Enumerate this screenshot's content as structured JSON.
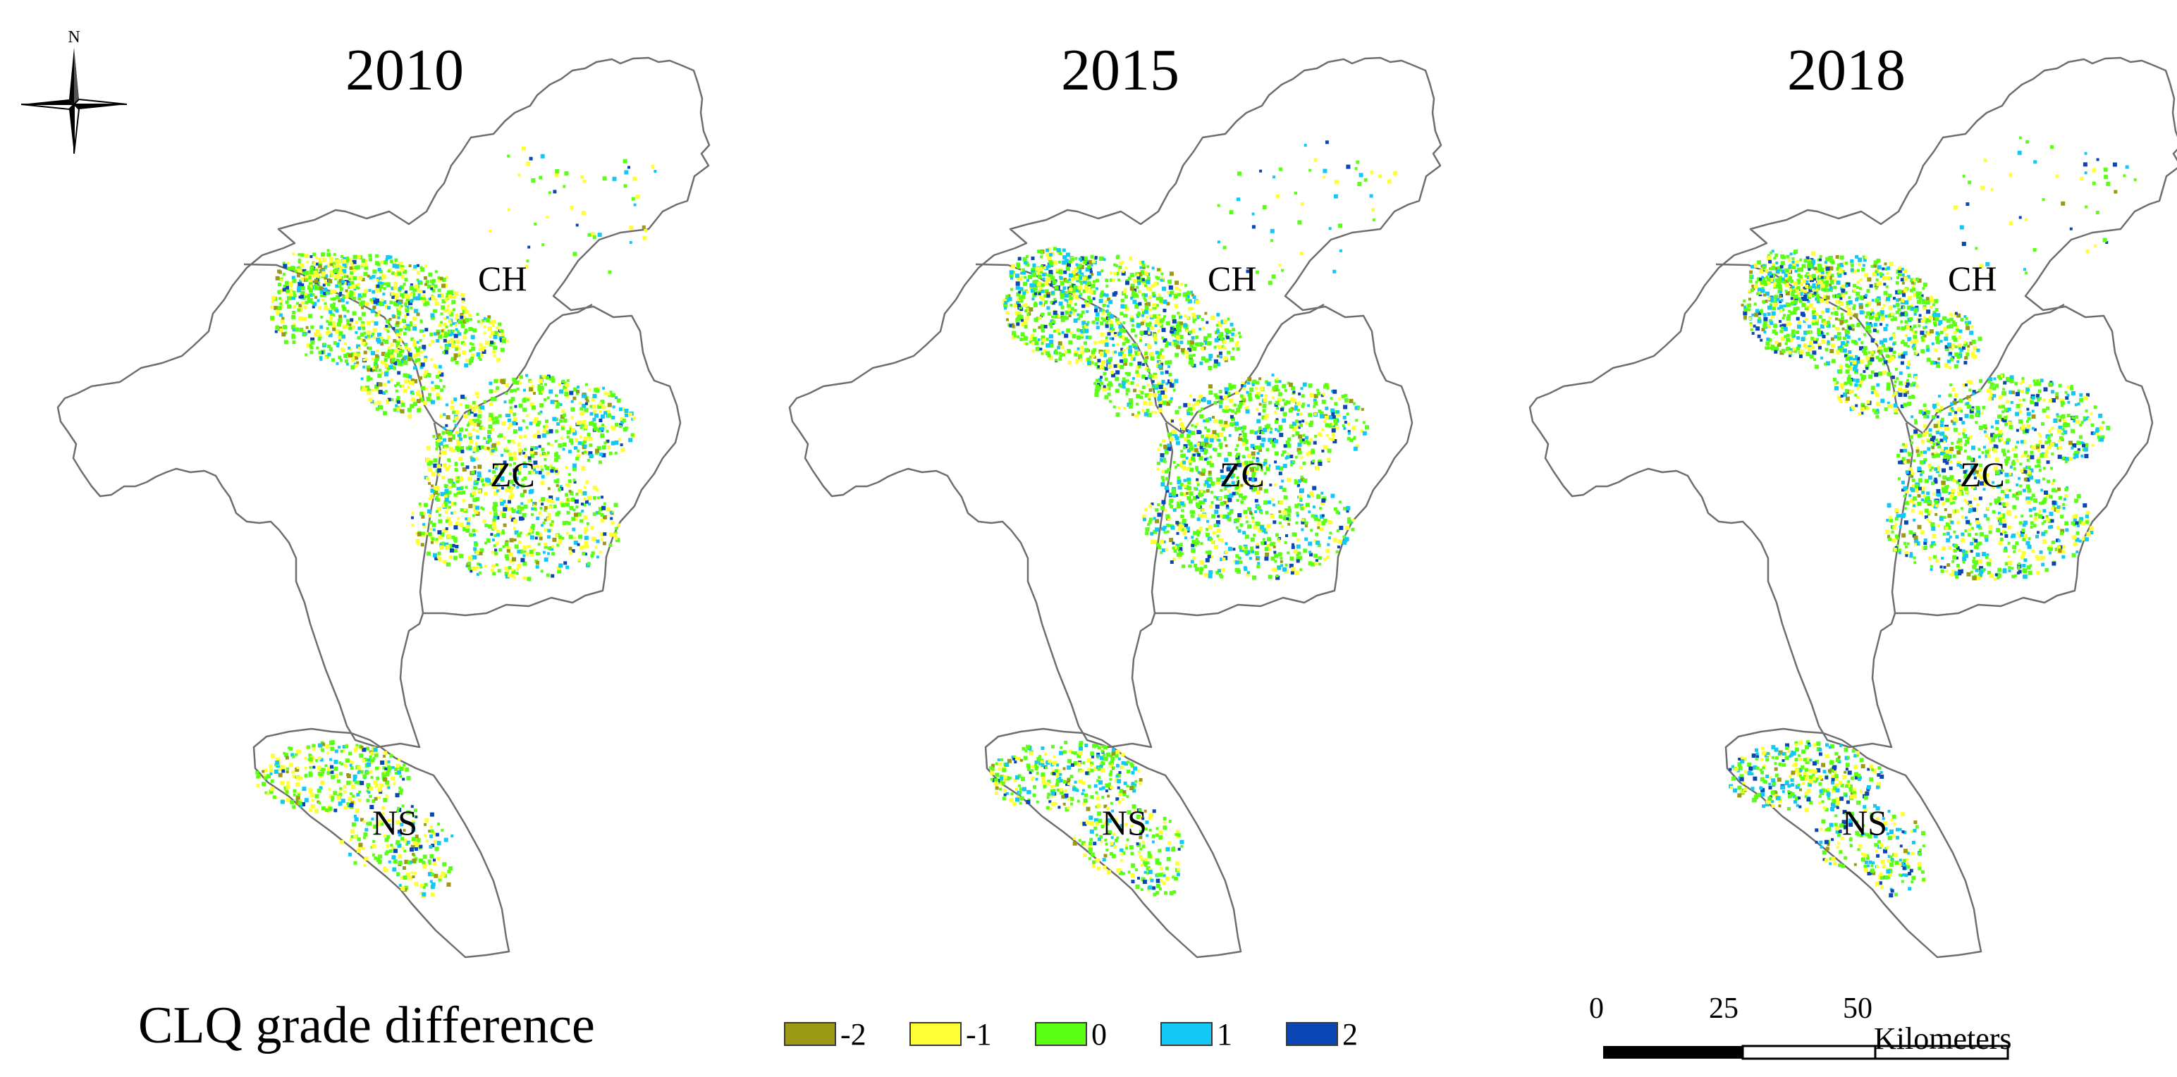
{
  "north_label": "N",
  "years": [
    "2010",
    "2015",
    "2018"
  ],
  "regions": {
    "north": "CH",
    "east": "ZC",
    "south": "NS"
  },
  "legend": {
    "title": "CLQ grade difference",
    "items": [
      {
        "label": "-2",
        "color": "#9c9a14"
      },
      {
        "label": "-1",
        "color": "#ffff33"
      },
      {
        "label": "0",
        "color": "#5aff14"
      },
      {
        "label": "1",
        "color": "#14c8f5"
      },
      {
        "label": "2",
        "color": "#0a46b4"
      }
    ]
  },
  "scale": {
    "ticks": [
      "0",
      "25",
      "50"
    ],
    "unit": "Kilometers"
  }
}
